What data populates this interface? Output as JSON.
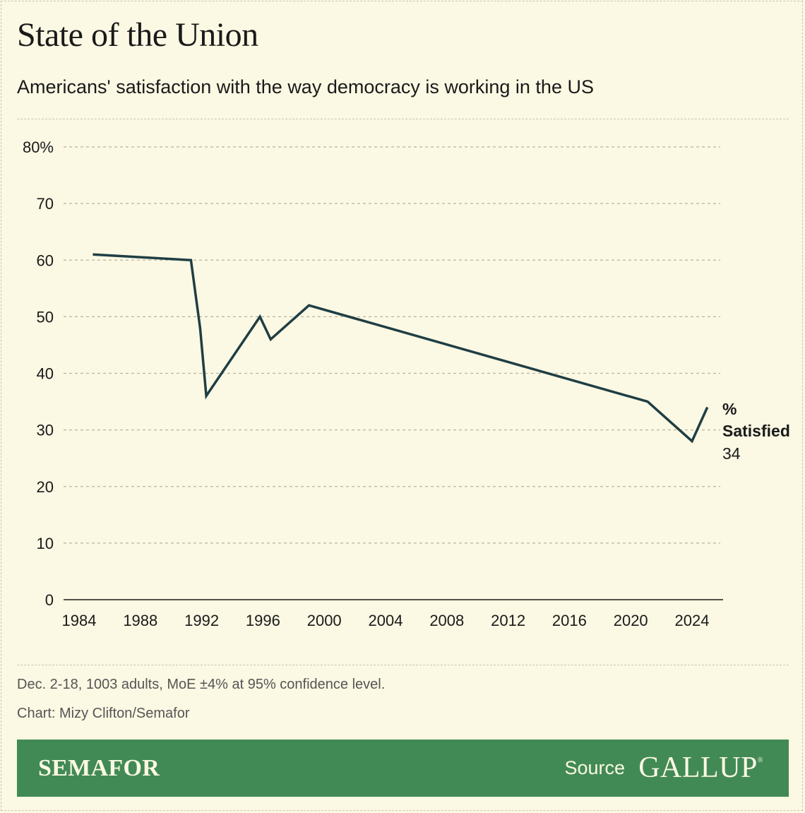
{
  "header": {
    "title": "State of the Union",
    "subtitle": "Americans' satisfaction with the way democracy is working in the US"
  },
  "chart_data": {
    "type": "line",
    "title": "State of the Union",
    "subtitle": "Americans' satisfaction with the way democracy is working in the US",
    "xlabel": "",
    "ylabel": "",
    "x_ticks": [
      "1984",
      "1988",
      "1992",
      "1996",
      "2000",
      "2004",
      "2008",
      "2012",
      "2016",
      "2020",
      "2024"
    ],
    "y_ticks": [
      "80%",
      "70",
      "60",
      "50",
      "40",
      "30",
      "20",
      "10",
      "0"
    ],
    "xlim": [
      1983,
      2026
    ],
    "ylim": [
      0,
      80
    ],
    "grid": "horizontal dashed",
    "series": [
      {
        "name": "% Satisfied",
        "color": "#1f3e44",
        "points": [
          {
            "x": 1984.9,
            "y": 61
          },
          {
            "x": 1991.3,
            "y": 60
          },
          {
            "x": 1991.9,
            "y": 48
          },
          {
            "x": 1992.3,
            "y": 36
          },
          {
            "x": 1995.8,
            "y": 50
          },
          {
            "x": 1996.5,
            "y": 46
          },
          {
            "x": 1999.0,
            "y": 52
          },
          {
            "x": 2021.1,
            "y": 35
          },
          {
            "x": 2024.0,
            "y": 28
          },
          {
            "x": 2025.0,
            "y": 34
          }
        ]
      }
    ],
    "end_label": {
      "line1": "%",
      "line2": "Satisfied",
      "value": "34"
    }
  },
  "notes": {
    "methodology": "Dec. 2-18, 1003 adults, MoE ±4% at 95% confidence level.",
    "credit": "Chart: Mizy Clifton/Semafor"
  },
  "footer": {
    "brand": "SEMAFOR",
    "source_label": "Source",
    "source_name": "GALLUP"
  },
  "colors": {
    "background": "#fbf8e3",
    "line": "#1f3e44",
    "footer": "#428a55",
    "grid": "#b5b3a5"
  }
}
